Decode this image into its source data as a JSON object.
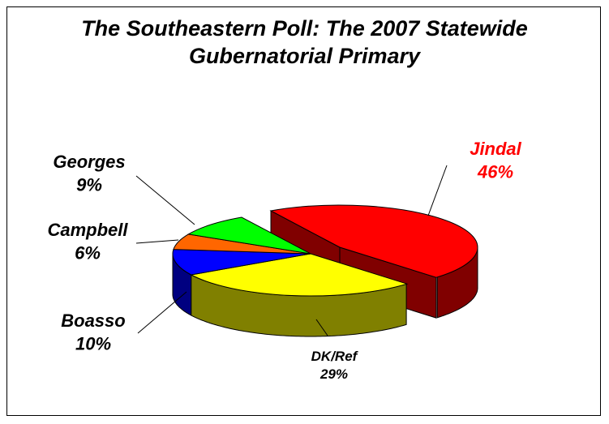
{
  "chart_data": {
    "type": "pie",
    "title_line1": "The Southeastern Poll: The 2007 Statewide",
    "title_line2": "Gubernatorial Primary",
    "slices": [
      {
        "name": "Jindal",
        "value": 46,
        "label": "46%",
        "color": "#ff0000",
        "side": "#800000",
        "label_color": "#ff0000"
      },
      {
        "name": "DK/Ref",
        "value": 29,
        "label": "29%",
        "color": "#ffff00",
        "side": "#808000",
        "label_color": "#000000"
      },
      {
        "name": "Boasso",
        "value": 10,
        "label": "10%",
        "color": "#0000ff",
        "side": "#000080",
        "label_color": "#000000"
      },
      {
        "name": "Campbell",
        "value": 6,
        "label": "6%",
        "color": "#ff6600",
        "side": "#993300",
        "label_color": "#000000"
      },
      {
        "name": "Georges",
        "value": 9,
        "label": "9%",
        "color": "#00ff00",
        "side": "#008000",
        "label_color": "#000000"
      }
    ],
    "legend": "none",
    "style": "3d-pie-exploded"
  }
}
